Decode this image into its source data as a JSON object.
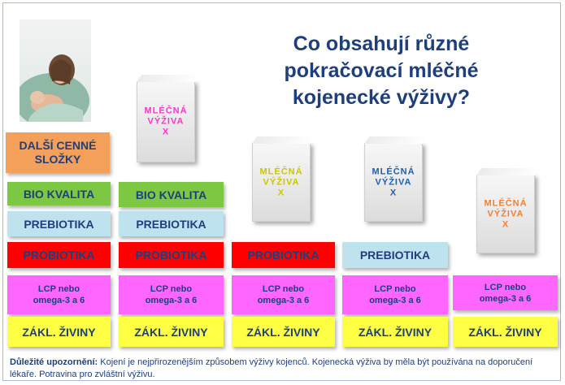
{
  "title": "Co obsahují různé pokračovací mléčné kojenecké výživy?",
  "products": [
    {
      "label_line1": "MLÉČNÁ",
      "label_line2": "VÝŽIVA",
      "label_line3": "X",
      "color": "#ff33cc"
    },
    {
      "label_line1": "MLÉČNÁ",
      "label_line2": "VÝŽIVA",
      "label_line3": "X",
      "color": "#cccc00"
    },
    {
      "label_line1": "MLÉČNÁ",
      "label_line2": "VÝŽIVA",
      "label_line3": "X",
      "color": "#1f5fa8"
    },
    {
      "label_line1": "MLÉČNÁ",
      "label_line2": "VÝŽIVA",
      "label_line3": "X",
      "color": "#f08030"
    }
  ],
  "layers": {
    "extra": "DALŠÍ CENNÉ SLOŽKY",
    "bio": "BIO KVALITA",
    "prebiotics": "PREBIOTIKA",
    "probiotics": "PROBIOTIKA",
    "lcp_line1": "LCP nebo",
    "lcp_line2": "omega-3 a 6",
    "basic": "ZÁKL. ŽIVINY"
  },
  "note": {
    "label": "Důležité upozornění:",
    "text": "Kojení je nejpřirozenějším způsobem výživy kojenců. Kojenecká výživa by měla být používána na doporučení lékaře. Potravina pro zvláštní výživu."
  },
  "colors": {
    "title": "#1f3f7a",
    "orange": "#f4a05a",
    "green": "#7dc843",
    "light_blue": "#bfe3ee",
    "red": "#ff0000",
    "magenta": "#ff66ff",
    "yellow": "#ffff44"
  }
}
